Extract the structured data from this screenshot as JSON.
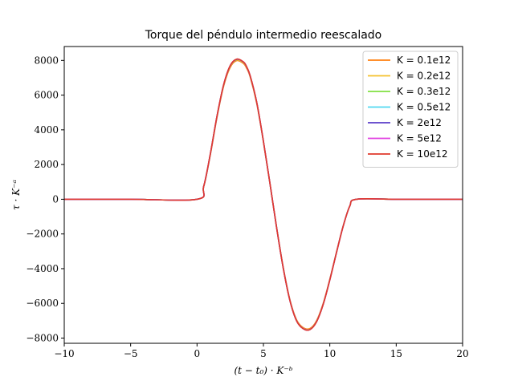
{
  "chart_data": {
    "type": "line",
    "title": "Torque del péndulo intermedio reescalado",
    "xlabel": "(t − t₀) · K⁻ᵇ",
    "ylabel": "τ · K⁻ᵃ",
    "xlim": [
      -10,
      20
    ],
    "ylim": [
      -8300,
      8800
    ],
    "x_ticks": [
      -10,
      -5,
      0,
      5,
      10,
      15,
      20
    ],
    "x_tick_labels": [
      "−10",
      "−5",
      "0",
      "5",
      "10",
      "15",
      "20"
    ],
    "y_ticks": [
      -8000,
      -6000,
      -4000,
      -2000,
      0,
      2000,
      4000,
      6000,
      8000
    ],
    "y_tick_labels": [
      "−8000",
      "−6000",
      "−4000",
      "−2000",
      "0",
      "2000",
      "4000",
      "6000",
      "8000"
    ],
    "grid": false,
    "legend_position": "top-right",
    "x": [
      -10,
      -5,
      0,
      0.5,
      1,
      1.5,
      2,
      2.5,
      3,
      3.5,
      3.7,
      4,
      4.5,
      5,
      5.5,
      6,
      6.5,
      7,
      7.5,
      8,
      8.5,
      9,
      9.5,
      10,
      10.5,
      11,
      11.5,
      12,
      15,
      20
    ],
    "series": [
      {
        "name": "K = 0.1e12",
        "color": "#ff7f0e",
        "values": [
          0,
          0,
          0,
          720,
          2550,
          4700,
          6500,
          7600,
          7990,
          7820,
          7600,
          7050,
          5500,
          3300,
          850,
          -1650,
          -3950,
          -5800,
          -6950,
          -7400,
          -7450,
          -7000,
          -6000,
          -4600,
          -3050,
          -1550,
          -400,
          0,
          0,
          0
        ]
      },
      {
        "name": "K = 0.2e12",
        "color": "#f5c02c",
        "values": [
          0,
          0,
          0,
          730,
          2580,
          4750,
          6550,
          7660,
          8030,
          7870,
          7650,
          7090,
          5540,
          3320,
          860,
          -1660,
          -3980,
          -5830,
          -6990,
          -7440,
          -7490,
          -7040,
          -6040,
          -4630,
          -3070,
          -1560,
          -400,
          0,
          0,
          0
        ]
      },
      {
        "name": "K = 0.3e12",
        "color": "#80e040",
        "values": [
          0,
          0,
          0,
          735,
          2590,
          4760,
          6570,
          7680,
          8050,
          7890,
          7670,
          7100,
          5550,
          3330,
          865,
          -1665,
          -3990,
          -5840,
          -7000,
          -7450,
          -7500,
          -7050,
          -6050,
          -4640,
          -3075,
          -1565,
          -400,
          0,
          0,
          0
        ]
      },
      {
        "name": "K = 0.5e12",
        "color": "#4fd8f0",
        "values": [
          0,
          0,
          0,
          738,
          2600,
          4770,
          6580,
          7690,
          8060,
          7900,
          7680,
          7110,
          5560,
          3335,
          868,
          -1668,
          -3995,
          -5845,
          -7005,
          -7455,
          -7505,
          -7055,
          -6055,
          -4645,
          -3078,
          -1568,
          -400,
          0,
          0,
          0
        ]
      },
      {
        "name": "K = 2e12",
        "color": "#5a3cc8",
        "values": [
          0,
          0,
          0,
          740,
          2605,
          4775,
          6585,
          7700,
          8070,
          7905,
          7685,
          7115,
          5565,
          3338,
          870,
          -1670,
          -3998,
          -5850,
          -7010,
          -7460,
          -7510,
          -7060,
          -6058,
          -4648,
          -3080,
          -1570,
          -400,
          0,
          0,
          0
        ]
      },
      {
        "name": "K = 5e12",
        "color": "#e040e0",
        "values": [
          0,
          0,
          0,
          741,
          2607,
          4778,
          6588,
          7702,
          8072,
          7907,
          7687,
          7117,
          5567,
          3339,
          871,
          -1671,
          -3999,
          -5851,
          -7011,
          -7461,
          -7511,
          -7061,
          -6059,
          -4649,
          -3081,
          -1571,
          -400,
          0,
          0,
          0
        ]
      },
      {
        "name": "K = 10e12",
        "color": "#e03a2c",
        "values": [
          0,
          0,
          0,
          742,
          2610,
          4780,
          6590,
          7705,
          8075,
          7910,
          7690,
          7120,
          5570,
          3340,
          872,
          -1672,
          -4000,
          -5852,
          -7012,
          -7462,
          -7512,
          -7062,
          -6060,
          -4650,
          -3082,
          -1572,
          -400,
          0,
          0,
          0
        ]
      }
    ]
  }
}
